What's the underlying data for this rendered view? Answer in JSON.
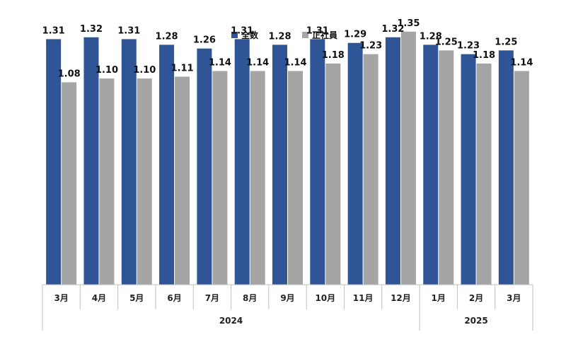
{
  "chart_data": {
    "type": "bar",
    "categories": [
      "3月",
      "4月",
      "5月",
      "6月",
      "7月",
      "8月",
      "9月",
      "10月",
      "11月",
      "12月",
      "1月",
      "2月",
      "3月"
    ],
    "groups": [
      {
        "label": "2024",
        "count": 10
      },
      {
        "label": "2025",
        "count": 3
      }
    ],
    "series": [
      {
        "name": "全数",
        "color": "#2F5597",
        "values": [
          1.31,
          1.32,
          1.31,
          1.28,
          1.26,
          1.31,
          1.28,
          1.31,
          1.29,
          1.32,
          1.28,
          1.23,
          1.25
        ],
        "labels": [
          "1.31",
          "1.32",
          "1.31",
          "1.28",
          "1.26",
          "1.31",
          "1.28",
          "1.31",
          "1.29",
          "1.32",
          "1.28",
          "1.23",
          "1.25"
        ]
      },
      {
        "name": "正社員",
        "color": "#A5A5A5",
        "values": [
          1.08,
          1.1,
          1.1,
          1.11,
          1.14,
          1.14,
          1.14,
          1.18,
          1.23,
          1.35,
          1.25,
          1.18,
          1.14
        ],
        "labels": [
          "1.08",
          "1.10",
          "1.10",
          "1.11",
          "1.14",
          "1.14",
          "1.14",
          "1.18",
          "1.23",
          "1.35",
          "1.25",
          "1.18",
          "1.14"
        ]
      }
    ],
    "ylim": [
      0,
      1.5
    ],
    "legend_position": "top-center",
    "grid": false
  }
}
